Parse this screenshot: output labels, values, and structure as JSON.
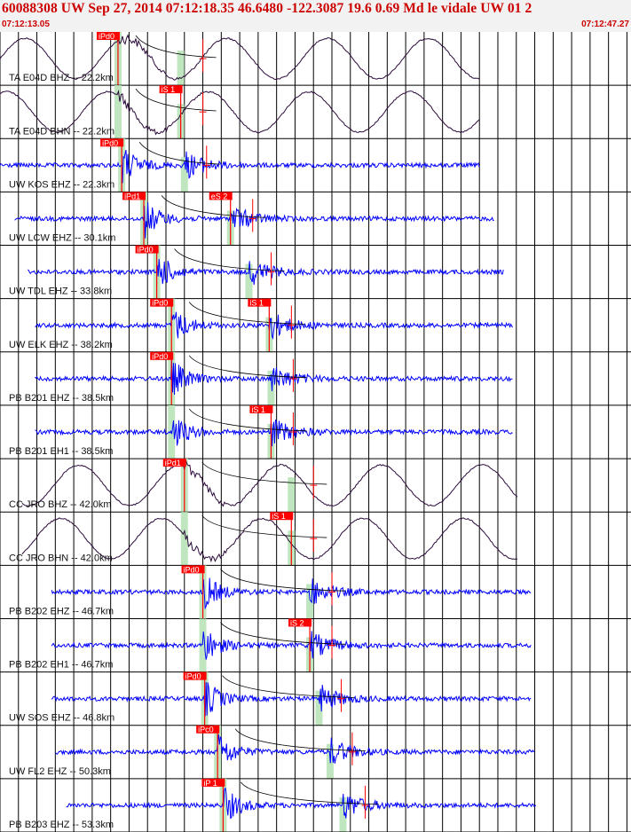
{
  "header": {
    "title": "60088308 UW Sep 27, 2014 07:12:18.35   46.6480 -122.3087 19.6 0.69 Md le vidale UW 01   2",
    "start_time": "07:12:13.05",
    "end_time": "07:12:47.27"
  },
  "colors": {
    "header_bg": "#f2f2f2",
    "header_text": "#cc0000",
    "short_period_trace": "#0000ff",
    "broadband_trace": "#2a0a3a",
    "pick": "#ff0000",
    "pick_window": "#bfe6bf",
    "predicted_curve": "#000000",
    "grid": "#000000"
  },
  "chart_data": {
    "type": "line",
    "title": "",
    "x_unit": "s",
    "xlim": [
      0,
      34.22
    ],
    "tick_interval_s": 1.0,
    "traces": [
      {
        "label": "TA E04D BHZ -- 22.2km",
        "broadband": true,
        "p_pick": "iPd0",
        "p_time": 6.4,
        "s_pick": "",
        "s_time": 9.8,
        "data_start": 0.0,
        "data_end": 26.0
      },
      {
        "label": "TA E04D BHN -- 22.2km",
        "broadband": true,
        "p_pick": "",
        "p_time": 6.4,
        "s_pick": "iS 1",
        "s_time": 9.8,
        "data_start": 0.0,
        "data_end": 26.0
      },
      {
        "label": "UW KOS EHZ -- 22.3km",
        "broadband": false,
        "p_pick": "iPd0",
        "p_time": 6.6,
        "s_pick": "",
        "s_time": 10.0,
        "data_start": 0.0,
        "data_end": 26.0
      },
      {
        "label": "UW LCW EHZ -- 30.1km",
        "broadband": false,
        "p_pick": "iPd1",
        "p_time": 7.8,
        "s_pick": "eS 2",
        "s_time": 12.5,
        "data_start": 0.8,
        "data_end": 26.8
      },
      {
        "label": "UW TDL EHZ -- 33.8km",
        "broadband": false,
        "p_pick": "iPd0",
        "p_time": 8.5,
        "s_pick": "",
        "s_time": 13.5,
        "data_start": 1.5,
        "data_end": 27.3
      },
      {
        "label": "UW ELK EHZ -- 38.2km",
        "broadband": false,
        "p_pick": "iPd0",
        "p_time": 9.3,
        "s_pick": "iS 1",
        "s_time": 14.6,
        "data_start": 1.9,
        "data_end": 27.8
      },
      {
        "label": "PB B201 EHZ -- 38.5km",
        "broadband": false,
        "p_pick": "iPd0",
        "p_time": 9.3,
        "s_pick": "",
        "s_time": 14.7,
        "data_start": 1.9,
        "data_end": 27.8
      },
      {
        "label": "PB B201 EH1 -- 38.5km",
        "broadband": false,
        "p_pick": "",
        "p_time": 9.3,
        "s_pick": "iS 1",
        "s_time": 14.7,
        "data_start": 1.9,
        "data_end": 27.8
      },
      {
        "label": "CC JRO BHZ -- 42.0km",
        "broadband": true,
        "p_pick": "iPd1",
        "p_time": 10.0,
        "s_pick": "",
        "s_time": 15.8,
        "data_start": 1.2,
        "data_end": 28.1
      },
      {
        "label": "CC JRO BHN -- 42.0km",
        "broadband": true,
        "p_pick": "",
        "p_time": 10.0,
        "s_pick": "iS 1",
        "s_time": 15.8,
        "data_start": 1.2,
        "data_end": 28.1
      },
      {
        "label": "PB B202 EHZ -- 46.7km",
        "broadband": false,
        "p_pick": "iPd0",
        "p_time": 11.0,
        "s_pick": "",
        "s_time": 16.8,
        "data_start": 2.8,
        "data_end": 28.8
      },
      {
        "label": "PB B202 EH1 -- 46.7km",
        "broadband": false,
        "p_pick": "",
        "p_time": 11.0,
        "s_pick": "iS 2",
        "s_time": 16.8,
        "data_start": 2.8,
        "data_end": 28.8
      },
      {
        "label": "UW SOS EHZ -- 46.8km",
        "broadband": false,
        "p_pick": "iPd0",
        "p_time": 11.1,
        "s_pick": "",
        "s_time": 17.3,
        "data_start": 2.8,
        "data_end": 28.8
      },
      {
        "label": "UW FL2 EHZ -- 50.3km",
        "broadband": false,
        "p_pick": "iPc0",
        "p_time": 11.8,
        "s_pick": "",
        "s_time": 17.9,
        "data_start": 3.0,
        "data_end": 29.0
      },
      {
        "label": "PB B203 EHZ -- 53.3km",
        "broadband": false,
        "p_pick": "iP 1",
        "p_time": 12.1,
        "s_pick": "",
        "s_time": 18.6,
        "data_start": 3.6,
        "data_end": 29.1
      }
    ]
  }
}
